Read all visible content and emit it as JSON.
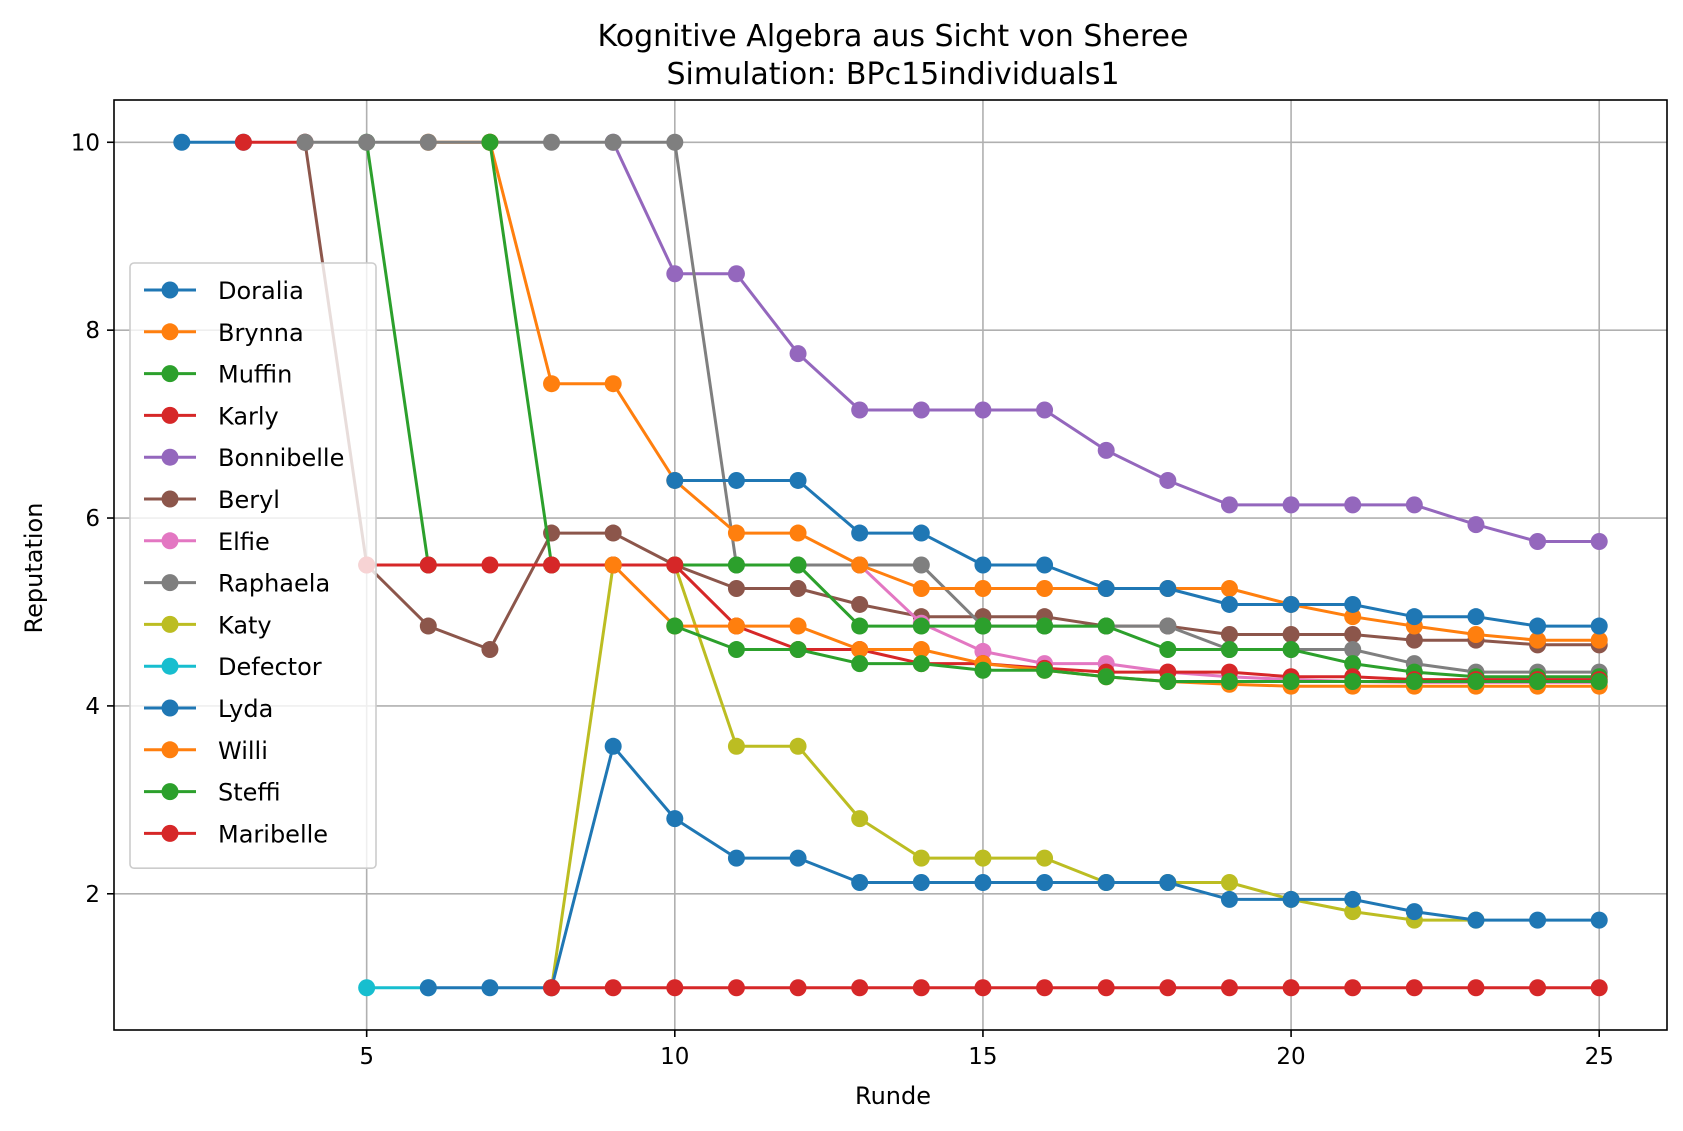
{
  "chart_data": {
    "type": "line",
    "title": "Kognitive Algebra aus Sicht von Sheree",
    "subtitle": "Simulation: BPc15individuals1",
    "xlabel": "Runde",
    "ylabel": "Reputation",
    "xlim": [
      0.9,
      26.1
    ],
    "ylim": [
      0.55,
      10.45
    ],
    "xticks": [
      5,
      10,
      15,
      20,
      25
    ],
    "yticks": [
      2,
      4,
      6,
      8,
      10
    ],
    "grid": true,
    "legend_position": "center-left",
    "series": [
      {
        "name": "Doralia",
        "color": "#1f77b4",
        "x": [
          2,
          3
        ],
        "y": [
          10,
          10
        ]
      },
      {
        "name": "Brynna",
        "color": "#ff7f0e",
        "x": [
          6,
          7
        ],
        "y": [
          10,
          10
        ]
      },
      {
        "name": "Muffin",
        "color": "#2ca02c",
        "x": [
          5,
          6
        ],
        "y": [
          10,
          5.5
        ]
      },
      {
        "name": "Karly",
        "color": "#d62728",
        "x": [
          3,
          4
        ],
        "y": [
          10,
          10
        ]
      },
      {
        "name": "Bonnibelle",
        "color": "#9467bd",
        "x": [
          9,
          10,
          11,
          12,
          13,
          14,
          15,
          16,
          17,
          18,
          19,
          20,
          21,
          22,
          23,
          24,
          25
        ],
        "y": [
          10,
          8.6,
          8.6,
          7.75,
          7.15,
          7.15,
          7.15,
          7.15,
          6.72,
          6.4,
          6.14,
          6.14,
          6.14,
          6.14,
          5.93,
          5.75,
          5.75
        ]
      },
      {
        "name": "Beryl",
        "color": "#8c564b",
        "x": [
          4,
          5,
          6,
          7,
          8,
          9,
          10,
          11,
          12,
          13,
          14,
          15,
          16,
          17,
          18,
          19,
          20,
          21,
          22,
          23,
          24,
          25
        ],
        "y": [
          10,
          5.5,
          4.85,
          4.6,
          5.84,
          5.84,
          5.5,
          5.25,
          5.25,
          5.08,
          4.95,
          4.95,
          4.95,
          4.85,
          4.85,
          4.76,
          4.76,
          4.76,
          4.7,
          4.7,
          4.65,
          4.65
        ]
      },
      {
        "name": "Elfie",
        "color": "#e377c2",
        "x": [
          13,
          14,
          15,
          16,
          17,
          18,
          19,
          20,
          21,
          22,
          23,
          24,
          25
        ],
        "y": [
          5.5,
          4.88,
          4.58,
          4.45,
          4.45,
          4.36,
          4.31,
          4.28,
          4.26,
          4.25,
          4.25,
          4.25,
          4.25
        ]
      },
      {
        "name": "Raphaela",
        "color": "#7f7f7f",
        "x": [
          4,
          5,
          6,
          7,
          8,
          9,
          10,
          11,
          12,
          13,
          14,
          15,
          16,
          17,
          18,
          19,
          20,
          21,
          22,
          23,
          24,
          25
        ],
        "y": [
          10,
          10,
          10,
          10,
          10,
          10,
          10,
          5.5,
          5.5,
          5.5,
          5.5,
          4.85,
          4.85,
          4.85,
          4.85,
          4.6,
          4.6,
          4.6,
          4.45,
          4.36,
          4.36,
          4.36
        ]
      },
      {
        "name": "Katy",
        "color": "#bcbd22",
        "x": [
          8,
          9,
          10,
          11,
          12,
          13,
          14,
          15,
          16,
          17,
          18,
          19,
          20,
          21,
          22,
          23
        ],
        "y": [
          1.0,
          5.5,
          5.5,
          3.57,
          3.57,
          2.8,
          2.38,
          2.38,
          2.38,
          2.12,
          2.12,
          2.12,
          1.94,
          1.81,
          1.72,
          1.72
        ]
      },
      {
        "name": "Defector",
        "color": "#17becf",
        "x": [
          5,
          6
        ],
        "y": [
          1.0,
          1.0
        ]
      },
      {
        "name": "Lyda",
        "color": "#1f77b4",
        "x": [
          6,
          7,
          8,
          9,
          10,
          11,
          12,
          13,
          14,
          15,
          16,
          17,
          18,
          19,
          20,
          21,
          22,
          23,
          24,
          25
        ],
        "y": [
          1.0,
          1.0,
          1.0,
          3.57,
          2.8,
          2.38,
          2.38,
          2.12,
          2.12,
          2.12,
          2.12,
          2.12,
          2.12,
          1.94,
          1.94,
          1.94,
          1.81,
          1.72,
          1.72,
          1.72
        ]
      },
      {
        "name": "Willi",
        "color": "#ff7f0e",
        "x": [
          7,
          8,
          9,
          10,
          11,
          12,
          13,
          14,
          15,
          16,
          17,
          18,
          19,
          20,
          21,
          22,
          23,
          24,
          25
        ],
        "y": [
          10,
          7.43,
          7.43,
          6.4,
          5.84,
          5.84,
          5.5,
          5.25,
          5.25,
          5.25,
          5.25,
          5.25,
          5.25,
          5.08,
          4.95,
          4.85,
          4.76,
          4.7,
          4.7
        ]
      },
      {
        "name": "Steffi",
        "color": "#2ca02c",
        "x": [
          7,
          8,
          9,
          10,
          11,
          12,
          13,
          14,
          15,
          16,
          17,
          18,
          19,
          20,
          21,
          22,
          23,
          24,
          25
        ],
        "y": [
          10,
          5.5,
          5.5,
          5.5,
          5.5,
          5.5,
          4.85,
          4.85,
          4.85,
          4.85,
          4.85,
          4.6,
          4.6,
          4.6,
          4.45,
          4.36,
          4.31,
          4.31,
          4.31
        ]
      },
      {
        "name": "Maribelle",
        "color": "#d62728",
        "x": [
          5,
          6,
          7,
          8,
          9,
          10,
          11,
          12,
          13,
          14,
          15,
          16,
          17,
          18,
          19,
          20,
          21,
          22,
          23,
          24,
          25
        ],
        "y": [
          5.5,
          5.5,
          5.5,
          5.5,
          5.5,
          5.5,
          4.85,
          4.6,
          4.6,
          4.45,
          4.45,
          4.4,
          4.36,
          4.36,
          4.36,
          4.31,
          4.31,
          4.28,
          4.28,
          4.28,
          4.28
        ]
      },
      {
        "name": "",
        "color": "#1f77b4",
        "x": [
          10,
          11,
          12,
          13,
          14,
          15,
          16,
          17,
          18,
          19,
          20,
          21,
          22,
          23,
          24,
          25
        ],
        "y": [
          6.4,
          6.4,
          6.4,
          5.84,
          5.84,
          5.5,
          5.5,
          5.25,
          5.25,
          5.08,
          5.08,
          5.08,
          4.95,
          4.95,
          4.85,
          4.85
        ]
      },
      {
        "name": "",
        "color": "#ff7f0e",
        "x": [
          9,
          10,
          11,
          12,
          13,
          14,
          15,
          16,
          17,
          18,
          19,
          20,
          21,
          22,
          23,
          24,
          25
        ],
        "y": [
          5.5,
          4.85,
          4.85,
          4.85,
          4.6,
          4.6,
          4.45,
          4.38,
          4.31,
          4.26,
          4.23,
          4.21,
          4.21,
          4.21,
          4.21,
          4.21,
          4.21
        ]
      },
      {
        "name": "",
        "color": "#2ca02c",
        "x": [
          10,
          11,
          12,
          13,
          14,
          15,
          16,
          17,
          18,
          19,
          20,
          21,
          22,
          23,
          24,
          25
        ],
        "y": [
          4.85,
          4.6,
          4.6,
          4.45,
          4.45,
          4.38,
          4.38,
          4.31,
          4.26,
          4.26,
          4.26,
          4.26,
          4.26,
          4.26,
          4.26,
          4.26
        ]
      },
      {
        "name": "",
        "color": "#d62728",
        "x": [
          8,
          9,
          10,
          11,
          12,
          13,
          14,
          15,
          16,
          17,
          18,
          19,
          20,
          21,
          22,
          23,
          24,
          25
        ],
        "y": [
          1.0,
          1.0,
          1.0,
          1.0,
          1.0,
          1.0,
          1.0,
          1.0,
          1.0,
          1.0,
          1.0,
          1.0,
          1.0,
          1.0,
          1.0,
          1.0,
          1.0,
          1.0
        ]
      }
    ]
  }
}
